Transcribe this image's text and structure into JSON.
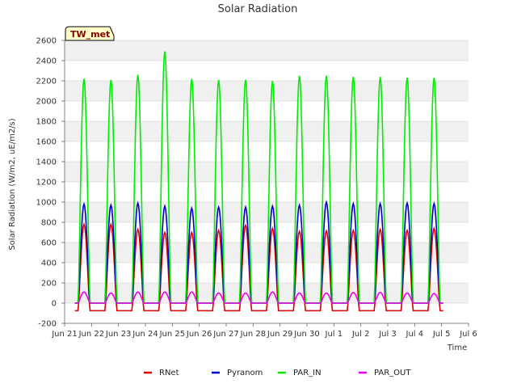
{
  "chart_data": {
    "type": "line",
    "title": "Solar Radiation",
    "xlabel": "Time",
    "ylabel": "Solar Radiation (W/m2, uE/m2/s)",
    "site_label": "TW_met",
    "ylim": [
      -200,
      2600
    ],
    "yticks": [
      -200,
      0,
      200,
      400,
      600,
      800,
      1000,
      1200,
      1400,
      1600,
      1800,
      2000,
      2200,
      2400,
      2600
    ],
    "xlim": [
      0,
      15
    ],
    "xticks": [
      {
        "x": 0,
        "label": "Jun 21"
      },
      {
        "x": 1,
        "label": "Jun 22"
      },
      {
        "x": 2,
        "label": "Jun 23"
      },
      {
        "x": 3,
        "label": "Jun 24"
      },
      {
        "x": 4,
        "label": "Jun 25"
      },
      {
        "x": 5,
        "label": "Jun 26"
      },
      {
        "x": 6,
        "label": "Jun 27"
      },
      {
        "x": 7,
        "label": "Jun 28"
      },
      {
        "x": 8,
        "label": "Jun 29"
      },
      {
        "x": 9,
        "label": "Jun 30"
      },
      {
        "x": 10,
        "label": "Jul 1"
      },
      {
        "x": 11,
        "label": "Jul 2"
      },
      {
        "x": 12,
        "label": "Jul 3"
      },
      {
        "x": 13,
        "label": "Jul 4"
      },
      {
        "x": 14,
        "label": "Jul 5"
      },
      {
        "x": 15,
        "label": "Jul 6"
      }
    ],
    "day_start": 0.5,
    "day_length": 0.44,
    "grid": true,
    "legend_position": "bottom",
    "series": [
      {
        "name": "RNet",
        "color": "#dd0000",
        "night": -75,
        "daily_peaks": [
          780,
          780,
          730,
          700,
          700,
          720,
          770,
          740,
          710,
          715,
          720,
          730,
          720,
          740
        ]
      },
      {
        "name": "Pyranom",
        "color": "#0000cc",
        "night": 0,
        "daily_peaks": [
          980,
          970,
          990,
          960,
          940,
          950,
          950,
          960,
          970,
          1000,
          985,
          985,
          990,
          985
        ]
      },
      {
        "name": "PAR_IN",
        "color": "#00ee00",
        "night": 0,
        "daily_peaks": [
          2220,
          2210,
          2260,
          2490,
          2220,
          2210,
          2210,
          2200,
          2250,
          2250,
          2240,
          2240,
          2230,
          2230
        ]
      },
      {
        "name": "PAR_OUT",
        "color": "#ee00ee",
        "night": 0,
        "daily_peaks": [
          110,
          100,
          110,
          110,
          110,
          100,
          100,
          110,
          100,
          100,
          105,
          105,
          100,
          95
        ]
      }
    ]
  }
}
